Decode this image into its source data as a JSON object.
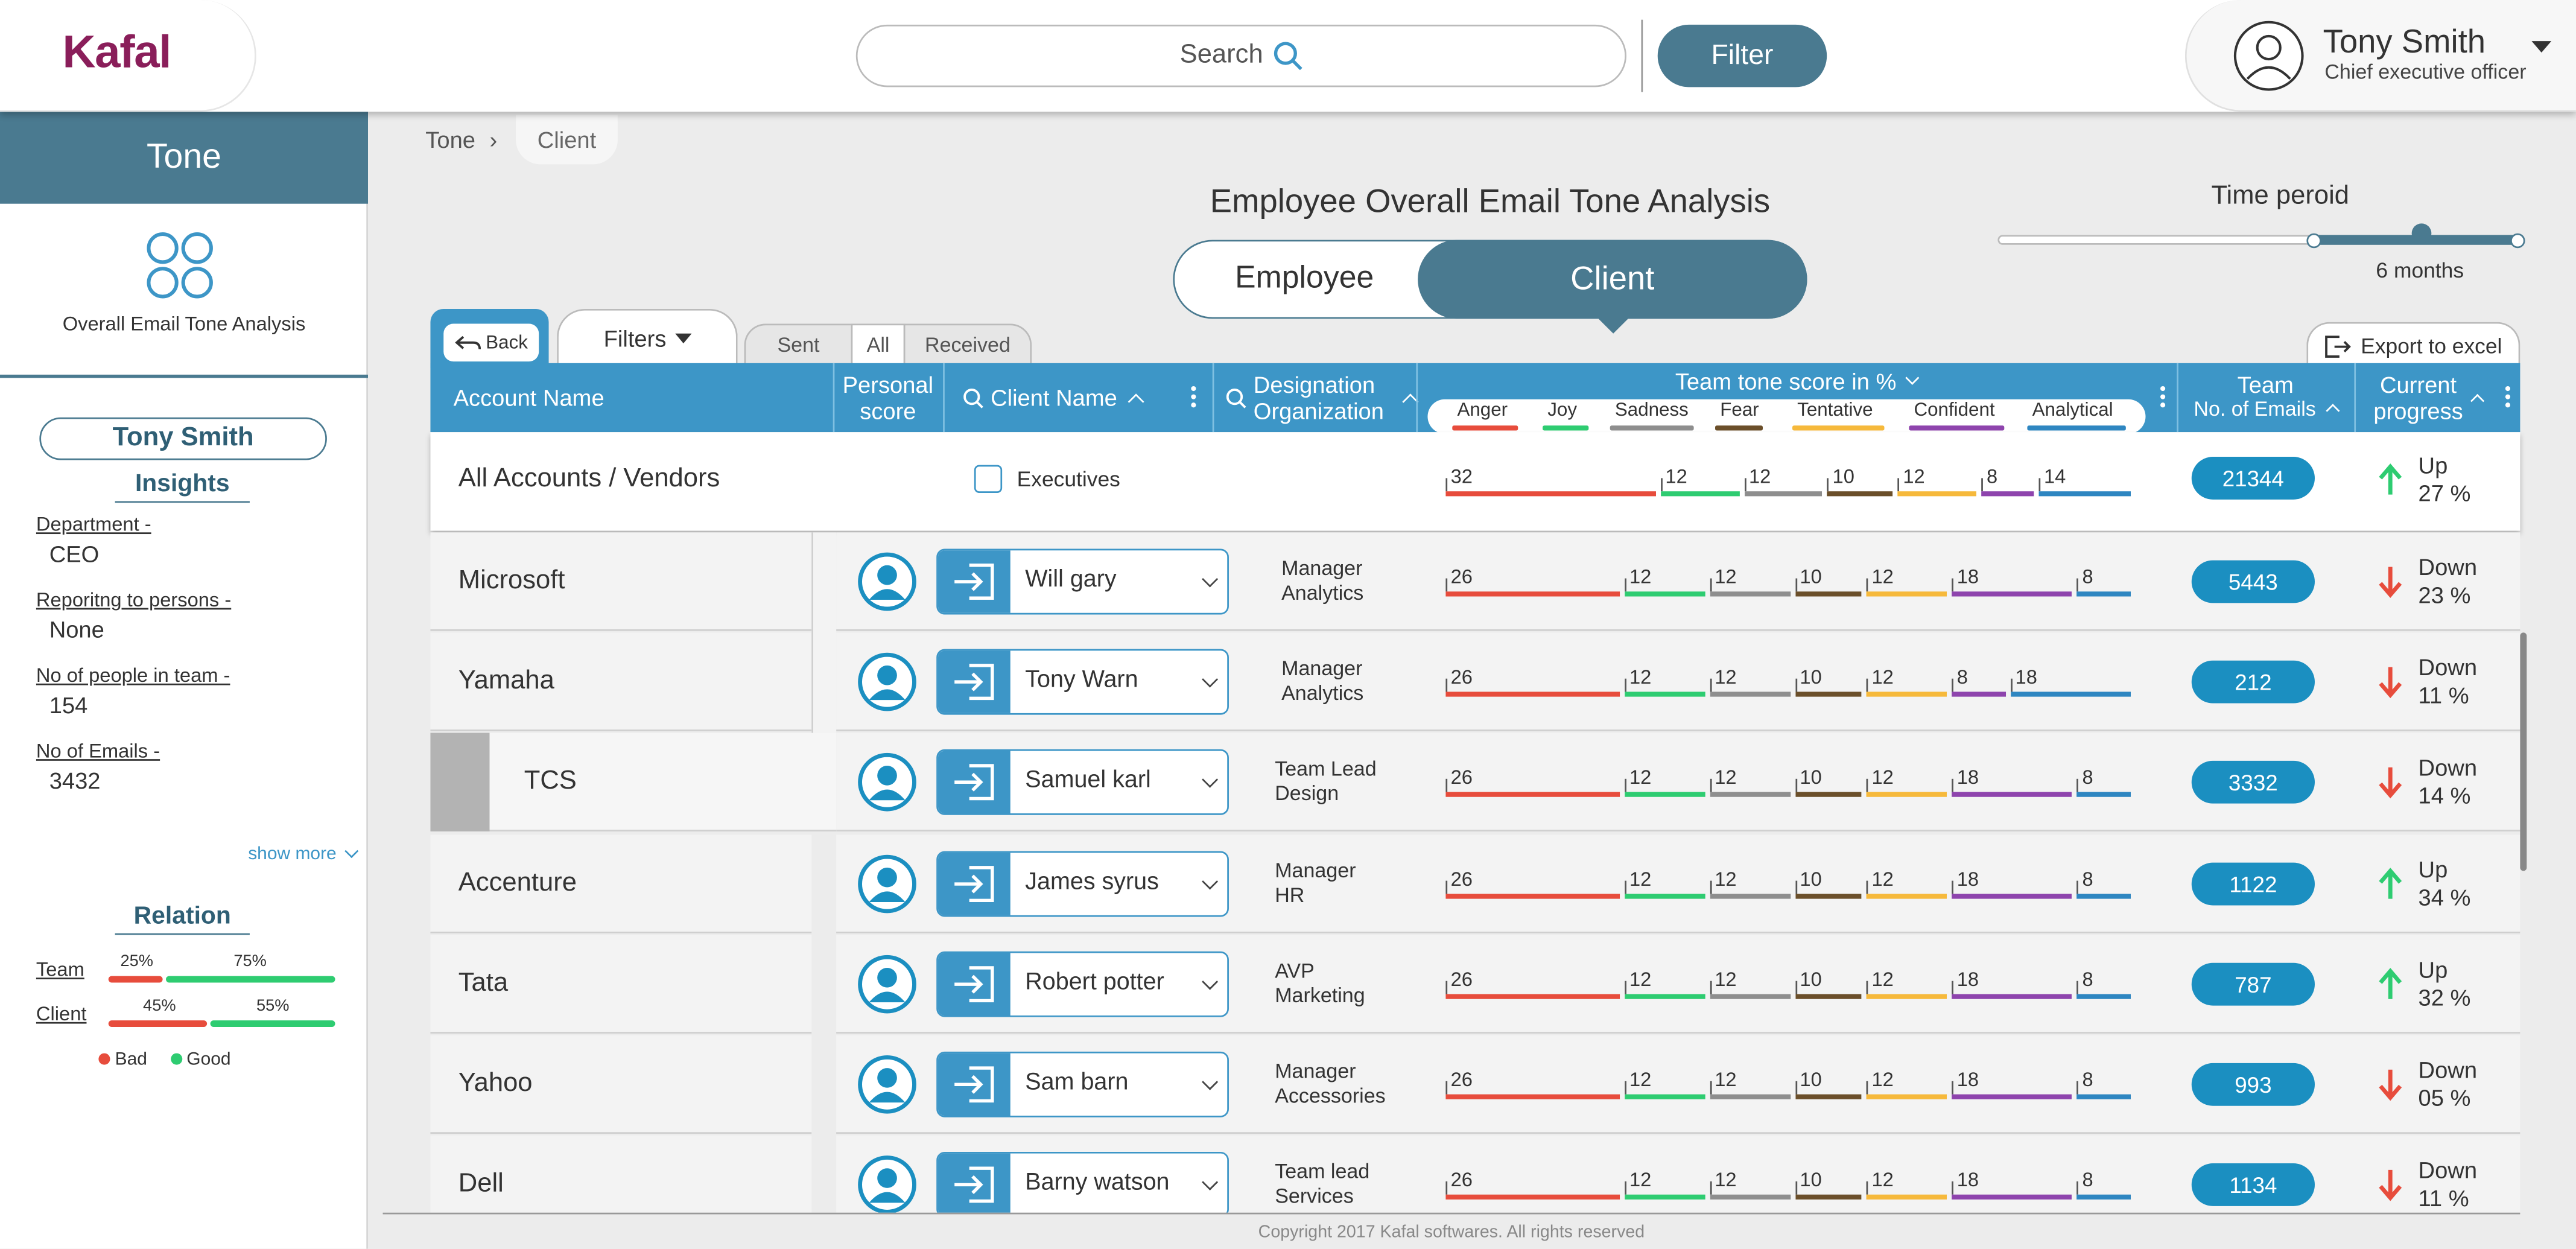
{
  "header": {
    "logo": "Kafal",
    "search_placeholder": "Search",
    "filter_label": "Filter",
    "user_name": "Tony Smith",
    "user_role": "Chief executive officer"
  },
  "sidebar": {
    "title": "Tone",
    "subtitle": "Overall Email Tone Analysis",
    "person": "Tony Smith",
    "insights_heading": "Insights",
    "insights": [
      {
        "label": "Department -",
        "value": "CEO"
      },
      {
        "label": "Reporitng to persons -",
        "value": "None"
      },
      {
        "label": "No of people in team -",
        "value": "154"
      },
      {
        "label": "No of Emails -",
        "value": "3432"
      }
    ],
    "show_more": "show more",
    "relation_heading": "Relation",
    "relations": [
      {
        "label": "Team",
        "bad": "25%",
        "good": "75%",
        "bad_fraction": 0.25
      },
      {
        "label": "Client",
        "bad": "45%",
        "good": "55%",
        "bad_fraction": 0.45
      }
    ],
    "legend_bad": "Bad",
    "legend_good": "Good"
  },
  "breadcrumb": {
    "first": "Tone",
    "current": "Client"
  },
  "main": {
    "title": "Employee Overall Email Tone Analysis",
    "toggle_employee": "Employee",
    "toggle_client": "Client",
    "time_period_label": "Time peroid",
    "time_period_value": "6 months",
    "back_label": "Back",
    "filters_label": "Filters",
    "seg_sent": "Sent",
    "seg_all": "All",
    "seg_received": "Received",
    "export_label": "Export to excel"
  },
  "table": {
    "headers": {
      "account": "Account Name",
      "personal": "Personal score",
      "client": "Client Name",
      "designation": "Designation Organization",
      "tone": "Team tone score in %",
      "team": "Team",
      "team_sub": "No. of Emails",
      "progress": "Current progress"
    },
    "tones": [
      {
        "name": "Anger",
        "color": "#e74c3c"
      },
      {
        "name": "Joy",
        "color": "#2ecc71"
      },
      {
        "name": "Sadness",
        "color": "#8e8e8e"
      },
      {
        "name": "Fear",
        "color": "#6b4f2a"
      },
      {
        "name": "Tentative",
        "color": "#f6b93b"
      },
      {
        "name": "Confident",
        "color": "#8e44ad"
      },
      {
        "name": "Analytical",
        "color": "#2e86c1"
      }
    ],
    "summary": {
      "account": "All Accounts / Vendors",
      "executives_label": "Executives",
      "tone_values": [
        "32",
        "12",
        "12",
        "10",
        "12",
        "8",
        "14"
      ],
      "emails": "21344",
      "progress_dir": "Up",
      "progress_pct": "27 %"
    },
    "rows": [
      {
        "account": "Microsoft",
        "client": "Will gary",
        "desg1": "Manager",
        "desg2": "Analytics",
        "tone_values": [
          "26",
          "12",
          "12",
          "10",
          "12",
          "18",
          "8"
        ],
        "emails": "5443",
        "dir": "Down",
        "pct": "23 %"
      },
      {
        "account": "Yamaha",
        "client": "Tony Warn",
        "desg1": "Manager",
        "desg2": "Analytics",
        "tone_values": [
          "26",
          "12",
          "12",
          "10",
          "12",
          "8",
          "18"
        ],
        "emails": "212",
        "dir": "Down",
        "pct": "11 %"
      },
      {
        "account": "TCS",
        "client": "Samuel karl",
        "desg1": "Team Lead",
        "desg2": "Design",
        "tone_values": [
          "26",
          "12",
          "12",
          "10",
          "12",
          "18",
          "8"
        ],
        "emails": "3332",
        "dir": "Down",
        "pct": "14 %"
      },
      {
        "account": "Accenture",
        "client": "James syrus",
        "desg1": "Manager",
        "desg2": "HR",
        "tone_values": [
          "26",
          "12",
          "12",
          "10",
          "12",
          "18",
          "8"
        ],
        "emails": "1122",
        "dir": "Up",
        "pct": "34 %"
      },
      {
        "account": "Tata",
        "client": "Robert potter",
        "desg1": "AVP",
        "desg2": "Marketing",
        "tone_values": [
          "26",
          "12",
          "12",
          "10",
          "12",
          "18",
          "8"
        ],
        "emails": "787",
        "dir": "Up",
        "pct": "32 %"
      },
      {
        "account": "Yahoo",
        "client": "Sam barn",
        "desg1": "Manager",
        "desg2": "Accessories",
        "tone_values": [
          "26",
          "12",
          "12",
          "10",
          "12",
          "18",
          "8"
        ],
        "emails": "993",
        "dir": "Down",
        "pct": "05 %"
      },
      {
        "account": "Dell",
        "client": "Barny watson",
        "desg1": "Team lead",
        "desg2": "Services",
        "tone_values": [
          "26",
          "12",
          "12",
          "10",
          "12",
          "18",
          "8"
        ],
        "emails": "1134",
        "dir": "Down",
        "pct": "11 %"
      }
    ]
  },
  "footer": "Copyright 2017 Kafal softwares. All rights reserved"
}
